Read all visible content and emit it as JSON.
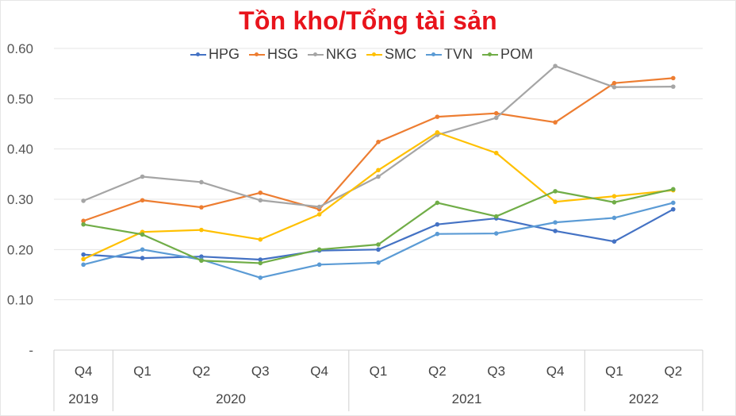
{
  "chart_data": {
    "type": "line",
    "title": "Tồn kho/Tổng tài sản",
    "categories": [
      "Q4",
      "Q1",
      "Q2",
      "Q3",
      "Q4",
      "Q1",
      "Q2",
      "Q3",
      "Q4",
      "Q1",
      "Q2"
    ],
    "year_groups": [
      {
        "label": "2019",
        "count": 1
      },
      {
        "label": "2020",
        "count": 4
      },
      {
        "label": "2021",
        "count": 4
      },
      {
        "label": "2022",
        "count": 2
      }
    ],
    "y_ticks": [
      "-",
      "0.10",
      "0.20",
      "0.30",
      "0.40",
      "0.50",
      "0.60"
    ],
    "ylim": [
      0,
      0.6
    ],
    "legend_position": "top",
    "series": [
      {
        "name": "HPG",
        "color": "#4472c4",
        "values": [
          0.19,
          0.183,
          0.186,
          0.18,
          0.198,
          0.2,
          0.25,
          0.262,
          0.237,
          0.216,
          0.28
        ]
      },
      {
        "name": "HSG",
        "color": "#ed7d31",
        "values": [
          0.257,
          0.298,
          0.284,
          0.313,
          0.28,
          0.414,
          0.464,
          0.471,
          0.453,
          0.531,
          0.541
        ]
      },
      {
        "name": "NKG",
        "color": "#a5a5a5",
        "values": [
          0.297,
          0.345,
          0.334,
          0.298,
          0.285,
          0.345,
          0.428,
          0.462,
          0.565,
          0.523,
          0.524
        ]
      },
      {
        "name": "SMC",
        "color": "#ffc000",
        "values": [
          0.181,
          0.235,
          0.239,
          0.22,
          0.27,
          0.358,
          0.433,
          0.392,
          0.295,
          0.306,
          0.318
        ]
      },
      {
        "name": "TVN",
        "color": "#5b9bd5",
        "values": [
          0.17,
          0.2,
          0.18,
          0.144,
          0.17,
          0.174,
          0.231,
          0.232,
          0.254,
          0.263,
          0.293
        ]
      },
      {
        "name": "POM",
        "color": "#70ad47",
        "values": [
          0.25,
          0.23,
          0.178,
          0.173,
          0.2,
          0.21,
          0.293,
          0.266,
          0.316,
          0.294,
          0.32
        ]
      }
    ]
  }
}
